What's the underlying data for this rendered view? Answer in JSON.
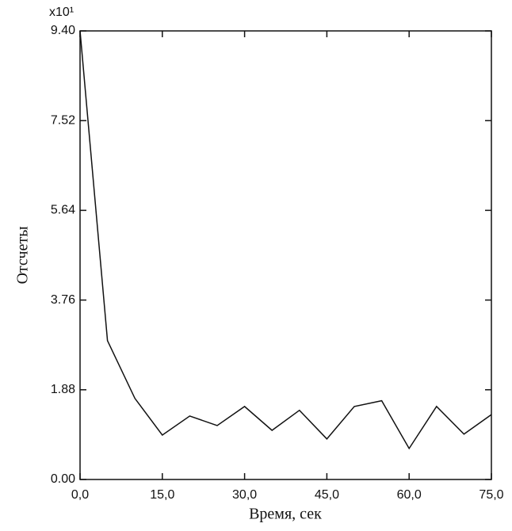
{
  "chart_data": {
    "type": "line",
    "x_label": "Время, сек",
    "y_label": "Отсчеты",
    "y_multiplier": "x10¹",
    "x": [
      0,
      5,
      10,
      15,
      20,
      25,
      30,
      35,
      40,
      45,
      50,
      55,
      60,
      65,
      70,
      75
    ],
    "values": [
      9.4,
      2.91,
      1.7,
      0.93,
      1.33,
      1.13,
      1.53,
      1.03,
      1.45,
      0.85,
      1.53,
      1.65,
      0.65,
      1.53,
      0.95,
      1.36
    ],
    "color": "#111111",
    "xlim": [
      0,
      75
    ],
    "ylim": [
      0,
      9.4
    ],
    "xticks": [
      {
        "value": 0,
        "label": "0,0"
      },
      {
        "value": 15,
        "label": "15,0"
      },
      {
        "value": 30,
        "label": "30,0"
      },
      {
        "value": 45,
        "label": "45,0"
      },
      {
        "value": 60,
        "label": "60,0"
      },
      {
        "value": 75,
        "label": "75,0"
      }
    ],
    "yticks": [
      {
        "value": 0,
        "label": "0.00"
      },
      1.88,
      3.76,
      5.64,
      7.52,
      {
        "value": 9.4,
        "label": "9.40"
      }
    ],
    "grid": false
  }
}
